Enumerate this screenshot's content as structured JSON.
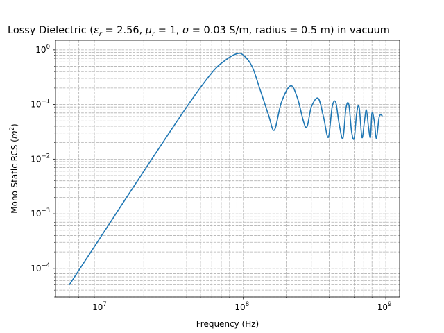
{
  "chart_data": {
    "type": "line",
    "title": {
      "prefix": "Lossy Dielectric (",
      "er_sym": "ε",
      "er_sub": "r",
      "er_val": " = 2.56, ",
      "mr_sym": "μ",
      "mr_sub": "r",
      "mr_val": " = 1, ",
      "sig_sym": "σ",
      "suffix": " = 0.03 S/m, radius = 0.5 m) in vacuum"
    },
    "xlabel": "Frequency (Hz)",
    "ylabel_prefix": "Mono-Static RCS (",
    "ylabel_unit": "m",
    "ylabel_exp": "2",
    "ylabel_suffix": ")",
    "x_scale": "log",
    "y_scale": "log",
    "xlim": [
      4800000,
      1250000000
    ],
    "ylim": [
      3e-05,
      1.5
    ],
    "x_ticks": [
      {
        "value": 10000000,
        "base": "10",
        "exp": "7"
      },
      {
        "value": 100000000,
        "base": "10",
        "exp": "8"
      },
      {
        "value": 1000000000,
        "base": "10",
        "exp": "9"
      }
    ],
    "y_ticks": [
      {
        "value": 0.0001,
        "base": "10",
        "exp": "−4"
      },
      {
        "value": 0.001,
        "base": "10",
        "exp": "−3"
      },
      {
        "value": 0.01,
        "base": "10",
        "exp": "−2"
      },
      {
        "value": 0.1,
        "base": "10",
        "exp": "−1"
      },
      {
        "value": 1,
        "base": "10",
        "exp": "0"
      }
    ],
    "grid": true,
    "series": [
      {
        "color": "#1f77b4",
        "x": [
          6000000,
          10000000,
          20000000,
          40000000,
          60000000,
          75000000,
          90000000,
          100000000,
          115000000,
          130000000,
          150000000,
          165000000,
          185000000,
          215000000,
          240000000,
          275000000,
          300000000,
          335000000,
          365000000,
          395000000,
          420000000,
          445000000,
          470000000,
          500000000,
          525000000,
          550000000,
          575000000,
          600000000,
          625000000,
          650000000,
          680000000,
          705000000,
          730000000,
          755000000,
          780000000,
          800000000,
          830000000,
          860000000,
          900000000,
          950000000
        ],
        "y": [
          5e-05,
          0.00038,
          0.006,
          0.09,
          0.38,
          0.65,
          0.85,
          0.8,
          0.5,
          0.2,
          0.065,
          0.034,
          0.11,
          0.22,
          0.13,
          0.038,
          0.09,
          0.13,
          0.06,
          0.025,
          0.09,
          0.11,
          0.045,
          0.024,
          0.085,
          0.1,
          0.032,
          0.024,
          0.07,
          0.09,
          0.025,
          0.045,
          0.08,
          0.04,
          0.025,
          0.07,
          0.05,
          0.024,
          0.06,
          0.062
        ]
      }
    ]
  }
}
